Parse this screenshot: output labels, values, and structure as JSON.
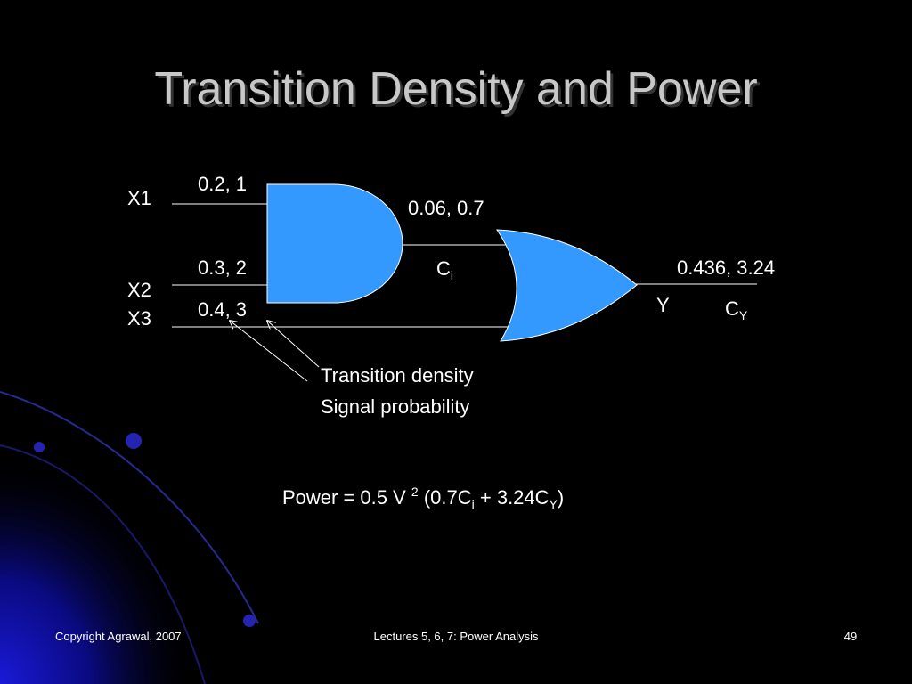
{
  "title": "Transition Density and Power",
  "inputs": [
    {
      "name": "X1",
      "label": "0.2, 1"
    },
    {
      "name": "X2",
      "label": "0.3, 2"
    },
    {
      "name": "X3",
      "label": "0.4, 3"
    }
  ],
  "internal": {
    "label": "0.06, 0.7",
    "cap": [
      "C",
      "i"
    ]
  },
  "output": {
    "name": "Y",
    "label": "0.436, 3.24",
    "cap": [
      "C",
      "Y"
    ]
  },
  "legend": [
    "Transition density",
    "Signal probability"
  ],
  "formula": [
    "Power = 0.5 V ",
    "2",
    " (0.7C",
    "i",
    " + 3.24C",
    "Y",
    ")"
  ],
  "footer": {
    "left": "Copyright Agrawal, 2007",
    "center": "Lectures 5, 6, 7: Power Analysis",
    "right": "49"
  }
}
